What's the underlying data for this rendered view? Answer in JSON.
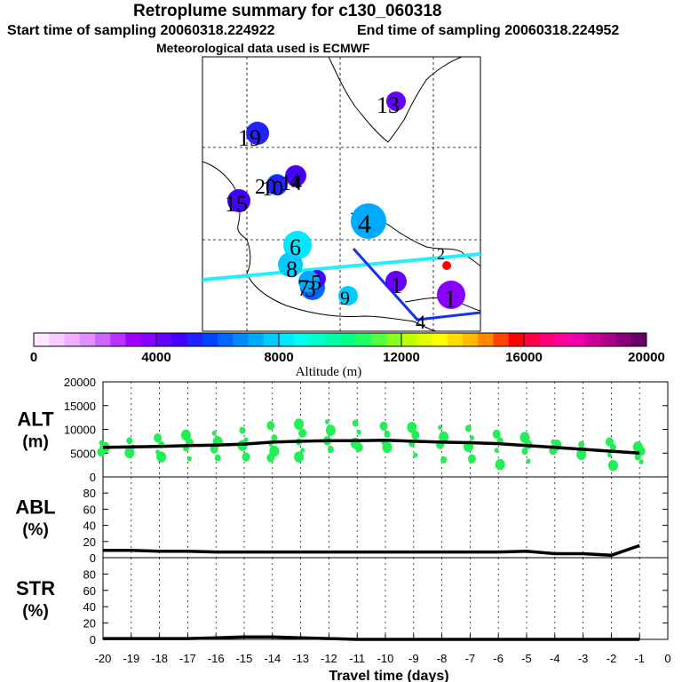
{
  "header": {
    "title": "Retroplume summary for c130_060318",
    "start_label": "Start time of sampling 20060318.224922",
    "end_label": "End time of sampling 20060318.224952",
    "met_label": "Meteorological data used is ECMWF"
  },
  "chart_data": [
    {
      "type": "map",
      "name": "plume-map",
      "clusters": [
        {
          "label": "1",
          "altitude": 4200
        },
        {
          "label": "1",
          "altitude": 3700
        },
        {
          "label": "2",
          "altitude": 15800
        },
        {
          "label": "3",
          "altitude": 6100
        },
        {
          "label": "4",
          "altitude": 7400
        },
        {
          "label": "4",
          "altitude": 4400
        },
        {
          "label": "5",
          "altitude": 4700
        },
        {
          "label": "6",
          "altitude": 8300
        },
        {
          "label": "7",
          "altitude": 7000
        },
        {
          "label": "8",
          "altitude": 7600
        },
        {
          "label": "9",
          "altitude": 7900
        },
        {
          "label": "10",
          "altitude": 6400
        },
        {
          "label": "13",
          "altitude": 4300
        },
        {
          "label": "14",
          "altitude": 4600
        },
        {
          "label": "15",
          "altitude": 4500
        },
        {
          "label": "19",
          "altitude": 5200
        },
        {
          "label": "20",
          "altitude": 5000
        }
      ],
      "ticks": [
        "4"
      ]
    },
    {
      "type": "colorbar",
      "name": "altitude-colorbar",
      "range": [
        0,
        20000
      ],
      "tick_labels": [
        "0",
        "4000",
        "8000",
        "12000",
        "16000",
        "20000"
      ],
      "xlabel": "Altitude (m)",
      "colors": [
        "#ffe8ff",
        "#f8ccff",
        "#f0b0ff",
        "#e090ff",
        "#cc66ff",
        "#b833ff",
        "#a000ff",
        "#8800ff",
        "#6600ff",
        "#4400ff",
        "#2222ff",
        "#0044ff",
        "#0066ff",
        "#0088ff",
        "#00aaff",
        "#00ccff",
        "#00e8ff",
        "#00ffee",
        "#00ffcc",
        "#00ffaa",
        "#00ff88",
        "#22ff66",
        "#55ff44",
        "#88ff22",
        "#bbff00",
        "#ddff00",
        "#ffff00",
        "#ffdd00",
        "#ffbb00",
        "#ff8800",
        "#ff4400",
        "#ff0000",
        "#ff0044",
        "#ff0077",
        "#ff0099",
        "#ee00aa",
        "#cc0099",
        "#aa0088",
        "#880077",
        "#660066"
      ]
    },
    {
      "type": "line",
      "name": "alt-panel",
      "ylabel": "ALT\n(m)",
      "ylabel_lines": [
        "ALT",
        "(m)"
      ],
      "ylim": [
        0,
        20000
      ],
      "y_ticks": [
        "0",
        "5000",
        "10000",
        "15000",
        "20000"
      ],
      "xlim": [
        -20,
        0
      ],
      "x": [
        -20,
        -19,
        -18,
        -17,
        -16,
        -15,
        -14,
        -13,
        -12,
        -11,
        -10,
        -9,
        -8,
        -7,
        -6,
        -5,
        -4,
        -3,
        -2,
        -1
      ],
      "values": [
        6200,
        6300,
        6400,
        6600,
        6700,
        6900,
        7300,
        7500,
        7600,
        7600,
        7700,
        7500,
        7300,
        7200,
        7000,
        6600,
        6200,
        5800,
        5400,
        5000
      ],
      "scatter": [
        [
          -20,
          [
            7200,
            6200,
            5200
          ]
        ],
        [
          -19,
          [
            7600,
            6300,
            5100
          ]
        ],
        [
          -18,
          [
            8200,
            6800,
            5200,
            4200
          ]
        ],
        [
          -17,
          [
            8800,
            7200,
            6100,
            3800
          ]
        ],
        [
          -16,
          [
            9200,
            7400,
            5900,
            4000
          ]
        ],
        [
          -15,
          [
            9800,
            7800,
            6600,
            4200
          ]
        ],
        [
          -14,
          [
            10800,
            8200,
            6900,
            5400,
            4000
          ]
        ],
        [
          -13,
          [
            11100,
            9200,
            7400,
            5600,
            4200
          ]
        ],
        [
          -12,
          [
            11600,
            9800,
            7600,
            5800
          ]
        ],
        [
          -11,
          [
            11300,
            9400,
            7100,
            6200
          ]
        ],
        [
          -10,
          [
            10700,
            9000,
            7200,
            6200
          ]
        ],
        [
          -9,
          [
            10400,
            8800,
            7000,
            4600
          ]
        ],
        [
          -8,
          [
            10400,
            8400,
            6800,
            3600
          ]
        ],
        [
          -7,
          [
            10200,
            8200,
            6400,
            3800
          ]
        ],
        [
          -6,
          [
            9000,
            7600,
            5600,
            2600
          ]
        ],
        [
          -5,
          [
            8300,
            6800,
            5400,
            3300
          ]
        ],
        [
          -4,
          [
            7400,
            6700,
            5600
          ]
        ],
        [
          -3,
          [
            6800,
            5700,
            4700
          ]
        ],
        [
          -2,
          [
            7400,
            6200,
            4600,
            2400
          ]
        ],
        [
          -1,
          [
            6300,
            5400,
            4200,
            3200
          ]
        ]
      ]
    },
    {
      "type": "line",
      "name": "abl-panel",
      "ylabel": "ABL\n(%)",
      "ylabel_lines": [
        "ABL",
        "(%)"
      ],
      "ylim": [
        0,
        100
      ],
      "y_ticks": [
        "0",
        "20",
        "40",
        "60",
        "80"
      ],
      "xlim": [
        -20,
        0
      ],
      "x": [
        -20,
        -19,
        -18,
        -17,
        -16,
        -15,
        -14,
        -13,
        -12,
        -11,
        -10,
        -9,
        -8,
        -7,
        -6,
        -5,
        -4,
        -3,
        -2,
        -1
      ],
      "values": [
        9,
        9,
        8,
        8,
        7,
        7,
        7,
        7,
        7,
        7,
        7,
        7,
        7,
        7,
        7,
        8,
        5,
        5,
        3,
        15
      ]
    },
    {
      "type": "line",
      "name": "str-panel",
      "ylabel": "STR\n(%)",
      "ylabel_lines": [
        "STR",
        "(%)"
      ],
      "ylim": [
        0,
        100
      ],
      "y_ticks": [
        "0",
        "20",
        "40",
        "60",
        "80"
      ],
      "xlim": [
        -20,
        0
      ],
      "x": [
        -20,
        -19,
        -18,
        -17,
        -16,
        -15,
        -14,
        -13,
        -12,
        -11,
        -10,
        -9,
        -8,
        -7,
        -6,
        -5,
        -4,
        -3,
        -2,
        -1
      ],
      "values": [
        1,
        1,
        1,
        1,
        2,
        3,
        3,
        2,
        1,
        0,
        0,
        0,
        0,
        0,
        0,
        0,
        0,
        0,
        0,
        0
      ],
      "x_ticks": [
        "-20",
        "-19",
        "-18",
        "-17",
        "-16",
        "-15",
        "-14",
        "-13",
        "-12",
        "-11",
        "-10",
        "-9",
        "-8",
        "-7",
        "-6",
        "-5",
        "-4",
        "-3",
        "-2",
        "-1",
        "0"
      ],
      "xlabel": "Travel time (days)"
    }
  ]
}
